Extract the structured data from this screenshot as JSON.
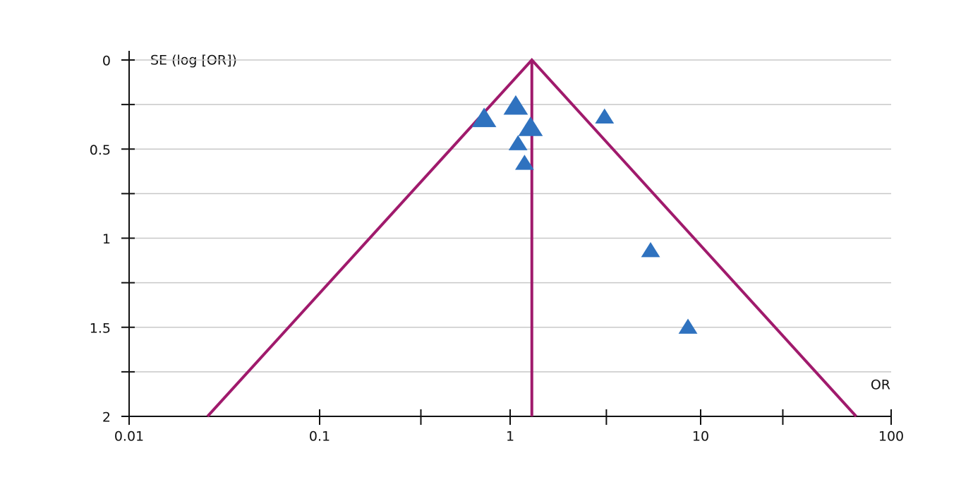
{
  "chart_data": {
    "type": "funnel",
    "y_label": "SE (log [OR])",
    "x_label": "OR",
    "x_log": true,
    "xlim": [
      0.01,
      100
    ],
    "xticks": [
      0.01,
      0.1,
      1,
      10,
      100
    ],
    "xminorticks": [
      0.34,
      3.2,
      27
    ],
    "ylim": [
      0,
      2
    ],
    "y_inverted": true,
    "yticks": [
      0,
      0.5,
      1,
      1.5,
      2
    ],
    "yminorticks": [
      0.25,
      0.75,
      1.25,
      1.75
    ],
    "grid": true,
    "funnel": {
      "center": 1.3,
      "z": 1.96,
      "color": "#a01a6c"
    },
    "series": [
      {
        "color": "#2f72bf",
        "x": [
          0.73,
          1.07,
          1.28,
          3.13,
          1.1,
          1.19,
          5.46,
          8.58
        ],
        "values": [
          0.33,
          0.26,
          0.38,
          0.32,
          0.47,
          0.58,
          1.07,
          1.5
        ],
        "sizes": [
          3,
          3,
          3,
          2,
          2,
          2,
          2,
          2
        ]
      }
    ]
  }
}
